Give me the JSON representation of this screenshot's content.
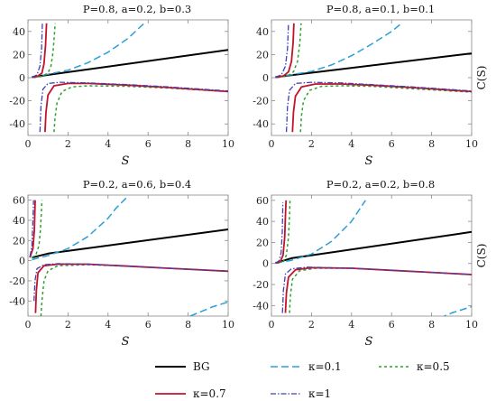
{
  "chart_data": [
    {
      "type": "line",
      "title": "P=0.8, a=0.2, b=0.3",
      "xlabel": "S",
      "ylabel": "",
      "xlim": [
        0,
        10
      ],
      "ylim": [
        -50,
        50
      ],
      "xticks": [
        0,
        2,
        4,
        6,
        8,
        10
      ],
      "yticks": [
        -40,
        -20,
        0,
        20,
        40
      ],
      "series": [
        {
          "name": "BG",
          "points": [
            [
              0.2,
              0.5
            ],
            [
              10,
              24
            ]
          ]
        },
        {
          "name": "κ=0.1",
          "points": [
            [
              0.2,
              0.3
            ],
            [
              1,
              3
            ],
            [
              2,
              6.5
            ],
            [
              3,
              13
            ],
            [
              4,
              22
            ],
            [
              5,
              34
            ],
            [
              5.8,
              47
            ]
          ]
        },
        {
          "name": "κ=0.5",
          "points": [
            [
              0.3,
              0.1
            ],
            [
              0.7,
              1.2
            ],
            [
              1.0,
              4
            ],
            [
              1.15,
              10
            ],
            [
              1.25,
              22
            ],
            [
              1.32,
              37
            ],
            [
              1.36,
              47
            ]
          ],
          "points2": [
            [
              1.3,
              -47
            ],
            [
              1.35,
              -35
            ],
            [
              1.45,
              -22
            ],
            [
              1.7,
              -12
            ],
            [
              2.2,
              -8
            ],
            [
              3,
              -7
            ],
            [
              5,
              -7.5
            ],
            [
              7,
              -9
            ],
            [
              10,
              -12
            ]
          ]
        },
        {
          "name": "κ=0.7",
          "points": [
            [
              0.2,
              0.2
            ],
            [
              0.5,
              1.5
            ],
            [
              0.7,
              4
            ],
            [
              0.8,
              12
            ],
            [
              0.88,
              28
            ],
            [
              0.93,
              47
            ]
          ],
          "points2": [
            [
              0.85,
              -47
            ],
            [
              0.9,
              -30
            ],
            [
              1.0,
              -15
            ],
            [
              1.3,
              -7
            ],
            [
              2,
              -5
            ],
            [
              3,
              -5
            ],
            [
              5,
              -6.5
            ],
            [
              7,
              -8.5
            ],
            [
              10,
              -12
            ]
          ]
        },
        {
          "name": "κ=1",
          "points": [
            [
              0.2,
              0.3
            ],
            [
              0.45,
              2.5
            ],
            [
              0.6,
              10
            ],
            [
              0.68,
              25
            ],
            [
              0.72,
              47
            ]
          ],
          "points2": [
            [
              0.6,
              -47
            ],
            [
              0.65,
              -25
            ],
            [
              0.75,
              -10
            ],
            [
              1.0,
              -5
            ],
            [
              1.6,
              -4
            ],
            [
              3,
              -4.5
            ],
            [
              5,
              -6
            ],
            [
              7,
              -8
            ],
            [
              10,
              -11.5
            ]
          ]
        }
      ]
    },
    {
      "type": "line",
      "title": "P=0.8, a=0.1, b=0.1",
      "xlabel": "S",
      "ylabel": "C(S)",
      "xlim": [
        0,
        10
      ],
      "ylim": [
        -50,
        50
      ],
      "xticks": [
        0,
        2,
        4,
        6,
        8,
        10
      ],
      "yticks": [
        -40,
        -20,
        0,
        20,
        40
      ],
      "series": [
        {
          "name": "BG",
          "points": [
            [
              0.2,
              0.5
            ],
            [
              10,
              21
            ]
          ]
        },
        {
          "name": "κ=0.1",
          "points": [
            [
              0.2,
              0.3
            ],
            [
              1,
              2.5
            ],
            [
              2,
              5.5
            ],
            [
              3,
              11
            ],
            [
              4,
              19
            ],
            [
              5,
              29
            ],
            [
              6,
              40
            ],
            [
              6.5,
              47
            ]
          ]
        },
        {
          "name": "κ=0.5",
          "points": [
            [
              0.3,
              0.1
            ],
            [
              0.8,
              1.5
            ],
            [
              1.1,
              5
            ],
            [
              1.3,
              14
            ],
            [
              1.42,
              30
            ],
            [
              1.48,
              47
            ]
          ],
          "points2": [
            [
              1.45,
              -47
            ],
            [
              1.5,
              -33
            ],
            [
              1.6,
              -20
            ],
            [
              1.9,
              -11
            ],
            [
              2.5,
              -7.5
            ],
            [
              3.5,
              -7
            ],
            [
              5,
              -7.5
            ],
            [
              7,
              -9.5
            ],
            [
              10,
              -12.5
            ]
          ]
        },
        {
          "name": "κ=0.7",
          "points": [
            [
              0.2,
              0.2
            ],
            [
              0.6,
              1.5
            ],
            [
              0.85,
              5
            ],
            [
              1.0,
              14
            ],
            [
              1.08,
              30
            ],
            [
              1.12,
              47
            ]
          ],
          "points2": [
            [
              1.05,
              -47
            ],
            [
              1.1,
              -30
            ],
            [
              1.2,
              -16
            ],
            [
              1.5,
              -8
            ],
            [
              2.2,
              -5.5
            ],
            [
              3.5,
              -5.5
            ],
            [
              5,
              -6.5
            ],
            [
              7,
              -8.5
            ],
            [
              10,
              -12
            ]
          ]
        },
        {
          "name": "κ=1",
          "points": [
            [
              0.2,
              0.3
            ],
            [
              0.5,
              2.5
            ],
            [
              0.7,
              10
            ],
            [
              0.8,
              25
            ],
            [
              0.85,
              47
            ]
          ],
          "points2": [
            [
              0.75,
              -47
            ],
            [
              0.8,
              -25
            ],
            [
              0.9,
              -11
            ],
            [
              1.2,
              -5
            ],
            [
              2,
              -4
            ],
            [
              3.5,
              -4.5
            ],
            [
              5,
              -6
            ],
            [
              7,
              -8
            ],
            [
              10,
              -11.5
            ]
          ]
        }
      ]
    },
    {
      "type": "line",
      "title": "P=0.2, a=0.6, b=0.4",
      "xlabel": "S",
      "ylabel": "",
      "xlim": [
        0,
        10
      ],
      "ylim": [
        -55,
        65
      ],
      "xticks": [
        0,
        2,
        4,
        6,
        8,
        10
      ],
      "yticks": [
        -40,
        -20,
        0,
        20,
        40,
        60
      ],
      "series": [
        {
          "name": "BG",
          "points": [
            [
              0.2,
              3
            ],
            [
              1,
              7
            ],
            [
              10,
              31
            ]
          ]
        },
        {
          "name": "κ=0.1",
          "points": [
            [
              0.2,
              1
            ],
            [
              1,
              5
            ],
            [
              2,
              12
            ],
            [
              3,
              24
            ],
            [
              4,
              42
            ],
            [
              4.4,
              52
            ],
            [
              4.9,
              62
            ]
          ],
          "points2": [
            [
              8.1,
              -55
            ],
            [
              8.6,
              -51
            ],
            [
              9.2,
              -46
            ],
            [
              10,
              -41
            ]
          ]
        },
        {
          "name": "κ=0.5",
          "points": [
            [
              0.2,
              3
            ],
            [
              0.4,
              6
            ],
            [
              0.55,
              15
            ],
            [
              0.62,
              30
            ],
            [
              0.66,
              45
            ],
            [
              0.7,
              60
            ]
          ],
          "points2": [
            [
              0.65,
              -55
            ],
            [
              0.7,
              -40
            ],
            [
              0.8,
              -20
            ],
            [
              1.0,
              -10
            ],
            [
              1.5,
              -5
            ],
            [
              3,
              -4
            ],
            [
              5,
              -5.5
            ],
            [
              7,
              -7.5
            ],
            [
              10,
              -10.5
            ]
          ]
        },
        {
          "name": "κ=0.7",
          "points": [
            [
              0.1,
              3
            ],
            [
              0.25,
              12
            ],
            [
              0.32,
              30
            ],
            [
              0.36,
              60
            ]
          ],
          "points2": [
            [
              0.38,
              -52
            ],
            [
              0.42,
              -30
            ],
            [
              0.5,
              -12
            ],
            [
              0.8,
              -5
            ],
            [
              1.5,
              -3.5
            ],
            [
              3,
              -3.5
            ],
            [
              5,
              -5.5
            ],
            [
              7,
              -7.5
            ],
            [
              10,
              -10.5
            ]
          ]
        },
        {
          "name": "κ=1",
          "points": [
            [
              0.1,
              4
            ],
            [
              0.2,
              15
            ],
            [
              0.25,
              40
            ],
            [
              0.28,
              60
            ]
          ],
          "points2": [
            [
              0.3,
              -40
            ],
            [
              0.35,
              -20
            ],
            [
              0.45,
              -8
            ],
            [
              0.8,
              -4
            ],
            [
              1.5,
              -3
            ],
            [
              3,
              -3.5
            ],
            [
              5,
              -5.5
            ],
            [
              7,
              -7.5
            ],
            [
              10,
              -10.5
            ]
          ]
        }
      ]
    },
    {
      "type": "line",
      "title": "P=0.2, a=0.2, b=0.8",
      "xlabel": "S",
      "ylabel": "C(S)",
      "xlim": [
        0,
        10
      ],
      "ylim": [
        -50,
        65
      ],
      "xticks": [
        0,
        2,
        4,
        6,
        8,
        10
      ],
      "yticks": [
        -40,
        -20,
        0,
        20,
        40,
        60
      ],
      "series": [
        {
          "name": "BG",
          "points": [
            [
              0.2,
              0.5
            ],
            [
              1,
              5
            ],
            [
              10,
              30
            ]
          ]
        },
        {
          "name": "κ=0.1",
          "points": [
            [
              0.2,
              0.5
            ],
            [
              1,
              3
            ],
            [
              2,
              9
            ],
            [
              3,
              21
            ],
            [
              4,
              40
            ],
            [
              4.7,
              60
            ]
          ],
          "points2": [
            [
              8.4,
              -52
            ],
            [
              9,
              -47
            ],
            [
              10,
              -41
            ]
          ]
        },
        {
          "name": "κ=0.5",
          "points": [
            [
              0.3,
              0.2
            ],
            [
              0.6,
              2
            ],
            [
              0.75,
              8
            ],
            [
              0.85,
              25
            ],
            [
              0.9,
              45
            ],
            [
              0.93,
              60
            ]
          ],
          "points2": [
            [
              0.9,
              -47
            ],
            [
              0.95,
              -30
            ],
            [
              1.05,
              -15
            ],
            [
              1.4,
              -7
            ],
            [
              2.2,
              -4.5
            ],
            [
              4,
              -4.5
            ],
            [
              6,
              -6.5
            ],
            [
              8,
              -8.5
            ],
            [
              10,
              -10.5
            ]
          ]
        },
        {
          "name": "κ=0.7",
          "points": [
            [
              0.2,
              0.2
            ],
            [
              0.45,
              2
            ],
            [
              0.58,
              8
            ],
            [
              0.66,
              25
            ],
            [
              0.7,
              45
            ],
            [
              0.73,
              60
            ]
          ],
          "points2": [
            [
              0.7,
              -47
            ],
            [
              0.75,
              -28
            ],
            [
              0.85,
              -13
            ],
            [
              1.2,
              -6
            ],
            [
              2,
              -4
            ],
            [
              4,
              -4.5
            ],
            [
              6,
              -6.5
            ],
            [
              8,
              -8.5
            ],
            [
              10,
              -10.5
            ]
          ]
        },
        {
          "name": "κ=1",
          "points": [
            [
              0.2,
              0.3
            ],
            [
              0.38,
              2.5
            ],
            [
              0.48,
              10
            ],
            [
              0.54,
              30
            ],
            [
              0.57,
              58
            ]
          ],
          "points2": [
            [
              0.55,
              -47
            ],
            [
              0.6,
              -25
            ],
            [
              0.7,
              -10
            ],
            [
              1.0,
              -5
            ],
            [
              1.8,
              -3.5
            ],
            [
              4,
              -4.5
            ],
            [
              6,
              -6.5
            ],
            [
              8,
              -8.5
            ],
            [
              10,
              -10.5
            ]
          ]
        }
      ]
    }
  ],
  "legend": {
    "placement": "bottom",
    "entries": [
      "BG",
      "κ=0.1",
      "κ=0.5",
      "κ=0.7",
      "κ=1"
    ]
  },
  "colors": {
    "BG": "#000000",
    "κ=0.1": "#2a9fd6",
    "κ=0.5": "#2ca02c",
    "κ=0.7": "#c0142a",
    "κ=1": "#4040b8"
  }
}
